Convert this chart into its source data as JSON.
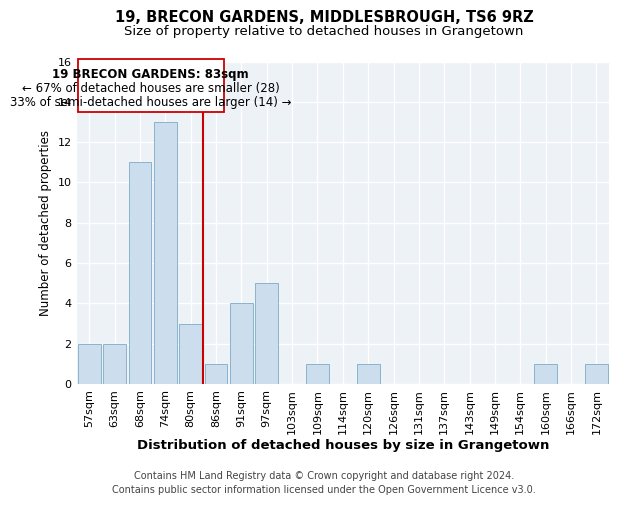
{
  "title1": "19, BRECON GARDENS, MIDDLESBROUGH, TS6 9RZ",
  "title2": "Size of property relative to detached houses in Grangetown",
  "xlabel": "Distribution of detached houses by size in Grangetown",
  "ylabel": "Number of detached properties",
  "categories": [
    "57sqm",
    "63sqm",
    "68sqm",
    "74sqm",
    "80sqm",
    "86sqm",
    "91sqm",
    "97sqm",
    "103sqm",
    "109sqm",
    "114sqm",
    "120sqm",
    "126sqm",
    "131sqm",
    "137sqm",
    "143sqm",
    "149sqm",
    "154sqm",
    "160sqm",
    "166sqm",
    "172sqm"
  ],
  "values": [
    2,
    2,
    11,
    13,
    3,
    1,
    4,
    5,
    0,
    1,
    0,
    1,
    0,
    0,
    0,
    0,
    0,
    0,
    1,
    0,
    1
  ],
  "bar_color": "#ccdded",
  "bar_edge_color": "#8ab4cc",
  "vline_x_index": 4.5,
  "vline_color": "#cc0000",
  "annotation_line1": "19 BRECON GARDENS: 83sqm",
  "annotation_line2": "← 67% of detached houses are smaller (28)",
  "annotation_line3": "33% of semi-detached houses are larger (14) →",
  "ylim": [
    0,
    16
  ],
  "yticks": [
    0,
    2,
    4,
    6,
    8,
    10,
    12,
    14,
    16
  ],
  "footer1": "Contains HM Land Registry data © Crown copyright and database right 2024.",
  "footer2": "Contains public sector information licensed under the Open Government Licence v3.0.",
  "bg_color": "#edf2f7",
  "grid_color": "#ffffff",
  "title1_fontsize": 10.5,
  "title2_fontsize": 9.5,
  "xlabel_fontsize": 9.5,
  "ylabel_fontsize": 8.5,
  "tick_fontsize": 8,
  "annotation_fontsize": 8.5,
  "footer_fontsize": 7
}
